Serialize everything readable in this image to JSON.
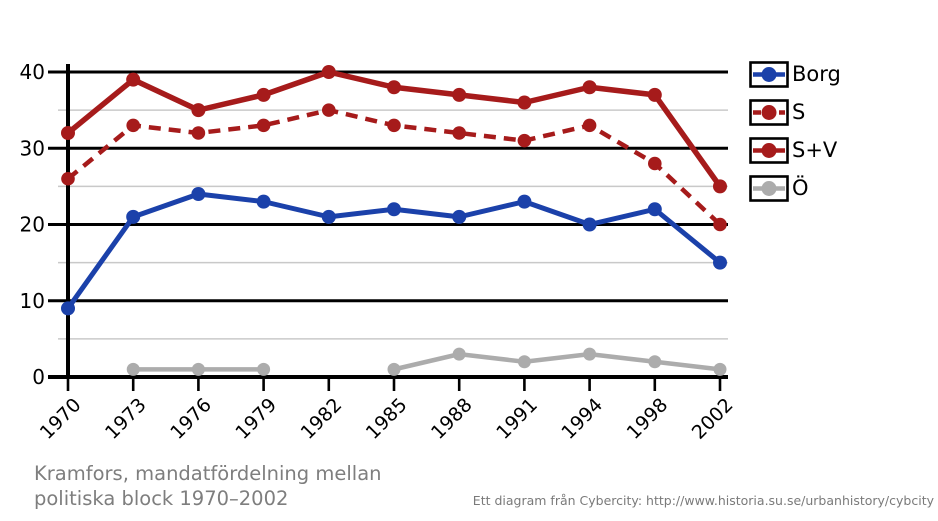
{
  "title": {
    "line1": "Kramfors, mandatfördelning mellan",
    "line2": "politiska block 1970–2002",
    "color": "#7E7E7E"
  },
  "footer": {
    "text": "Ett diagram från Cybercity: http://www.historia.su.se/urbanhistory/cybcity",
    "color": "#7A7A7A"
  },
  "chart_data": {
    "type": "line",
    "title": "Kramfors, mandatfördelning mellan politiska block 1970–2002",
    "xlabel": "",
    "ylabel": "",
    "categories": [
      "1970",
      "1973",
      "1976",
      "1979",
      "1982",
      "1985",
      "1988",
      "1991",
      "1994",
      "1998",
      "2002"
    ],
    "series": [
      {
        "name": "Borg",
        "color": "#1B41AA",
        "line_style": "solid",
        "values": [
          9,
          21,
          24,
          23,
          21,
          22,
          21,
          23,
          20,
          22,
          15
        ]
      },
      {
        "name": "S",
        "color": "#A61B1B",
        "line_style": "dashed",
        "values": [
          26,
          33,
          32,
          33,
          35,
          33,
          32,
          31,
          33,
          28,
          20
        ]
      },
      {
        "name": "S+V",
        "color": "#A61B1B",
        "line_style": "solid",
        "values": [
          32,
          39,
          35,
          37,
          40,
          38,
          37,
          36,
          38,
          37,
          25
        ]
      },
      {
        "name": "Ö",
        "color": "#ACACAC",
        "line_style": "solid",
        "values": [
          null,
          1,
          1,
          1,
          null,
          1,
          3,
          2,
          3,
          2,
          1
        ]
      }
    ],
    "ylim": [
      0,
      40
    ],
    "yticks_major": [
      0,
      10,
      20,
      30,
      40
    ],
    "yticks_minor": [
      5,
      15,
      25,
      35
    ],
    "grid": true,
    "grid_major_color": "#000000",
    "grid_minor_color": "#C9C9C9",
    "axis_color": "#000000",
    "background_color": "#FFFFFF",
    "legend_position": "right",
    "x_tick_label_rotation_deg": -45
  }
}
